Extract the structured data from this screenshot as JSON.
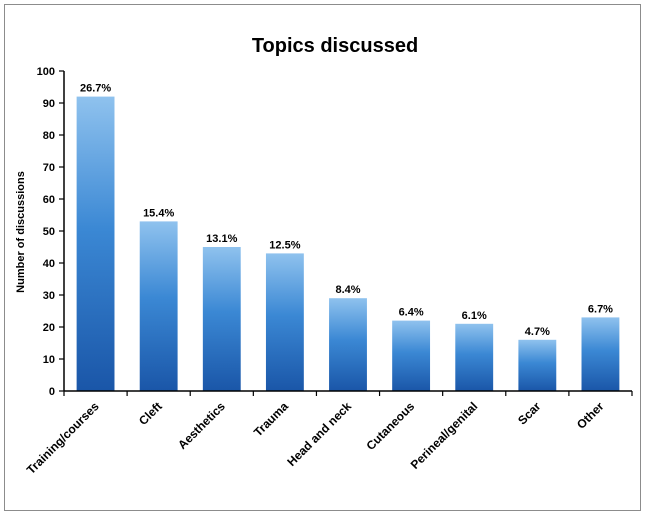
{
  "chart_data": {
    "type": "bar",
    "title": "Topics discussed",
    "xlabel": "",
    "ylabel": "Number of discussions",
    "ylim": [
      0,
      100
    ],
    "y_ticks": [
      0,
      10,
      20,
      30,
      40,
      50,
      60,
      70,
      80,
      90,
      100
    ],
    "grid": false,
    "legend": "none",
    "categories": [
      "Training/courses",
      "Cleft",
      "Aesthetics",
      "Trauma",
      "Head and neck",
      "Cutaneous",
      "Perineal/genital",
      "Scar",
      "Other"
    ],
    "values": [
      92,
      53,
      45,
      43,
      29,
      22,
      21,
      16,
      23
    ],
    "data_labels": [
      "26.7%",
      "15.4%",
      "13.1%",
      "12.5%",
      "8.4%",
      "6.4%",
      "6.1%",
      "4.7%",
      "6.7%"
    ],
    "colors": {
      "bar_light": "#8fc2ee",
      "bar_mid": "#3b88d4",
      "bar_dark": "#1a56a8",
      "axis": "#000000",
      "frame": "#8c8c8c"
    }
  }
}
